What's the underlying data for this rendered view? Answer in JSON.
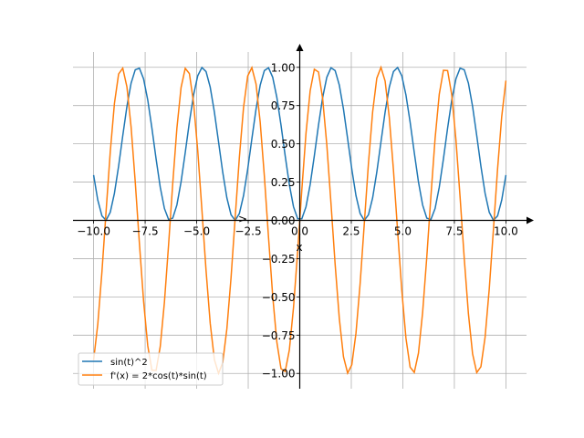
{
  "chart_data": {
    "type": "line",
    "title": "",
    "xlabel": "x",
    "ylabel": "",
    "xlim": [
      -11,
      11
    ],
    "ylim": [
      -1.1,
      1.1
    ],
    "grid": true,
    "legend_position": "lower-left",
    "x_samples": {
      "start": -10,
      "stop": 10,
      "num": 100
    },
    "xticks": [
      -10,
      -7.5,
      -5,
      -2.5,
      0,
      2.5,
      5,
      7.5,
      10
    ],
    "xtick_labels": [
      "−10.0",
      "−7.5",
      "−5.0",
      "−2.5",
      "0.0",
      "2.5",
      "5.0",
      "7.5",
      "10.0"
    ],
    "yticks": [
      -1,
      -0.75,
      -0.5,
      -0.25,
      0,
      0.25,
      0.5,
      0.75,
      1
    ],
    "ytick_labels": [
      "−1.00",
      "−0.75",
      "−0.50",
      "−0.25",
      "0.00",
      "0.25",
      "0.50",
      "0.75",
      "1.00"
    ],
    "series": [
      {
        "name": "sin(t)^2",
        "expression": "sin(t)^2",
        "color": "#1f77b4"
      },
      {
        "name": "f'(x) = 2*cos(t)*sin(t)",
        "expression": "2*cos(t)*sin(t)",
        "color": "#ff7f0e"
      }
    ],
    "marker_glyph": ">"
  }
}
